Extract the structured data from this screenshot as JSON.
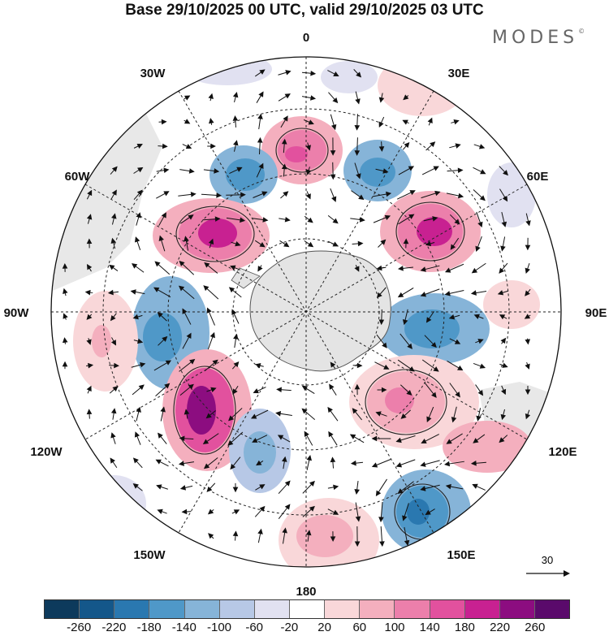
{
  "title": "Base 29/10/2025 00 UTC, valid 29/10/2025 03 UTC",
  "brand": "MODES",
  "brand_mark": "©",
  "longitude_labels": {
    "lon_0": "0",
    "lon_30e": "30E",
    "lon_60e": "60E",
    "lon_90e": "90E",
    "lon_120e": "120E",
    "lon_150e": "150E",
    "lon_180": "180",
    "lon_150w": "150W",
    "lon_120w": "120W",
    "lon_90w": "90W",
    "lon_60w": "60W",
    "lon_30w": "30W"
  },
  "vector_reference": {
    "value": "30"
  },
  "colorbar": {
    "ticks": [
      "-260",
      "-220",
      "-180",
      "-140",
      "-100",
      "-60",
      "-20",
      "20",
      "60",
      "100",
      "140",
      "180",
      "220",
      "260"
    ],
    "colors": [
      "#0d3a5c",
      "#14578a",
      "#2a78b0",
      "#4f98c8",
      "#86b4d8",
      "#b7c8e6",
      "#e1e1f1",
      "#ffffff",
      "#f9d7d9",
      "#f4afbe",
      "#ec7fab",
      "#e2519e",
      "#c82191",
      "#8c0d80",
      "#5a0a6b"
    ]
  },
  "colors": {
    "land": "#e6e6e6",
    "coast": "#555555",
    "grid": "#222222"
  }
}
